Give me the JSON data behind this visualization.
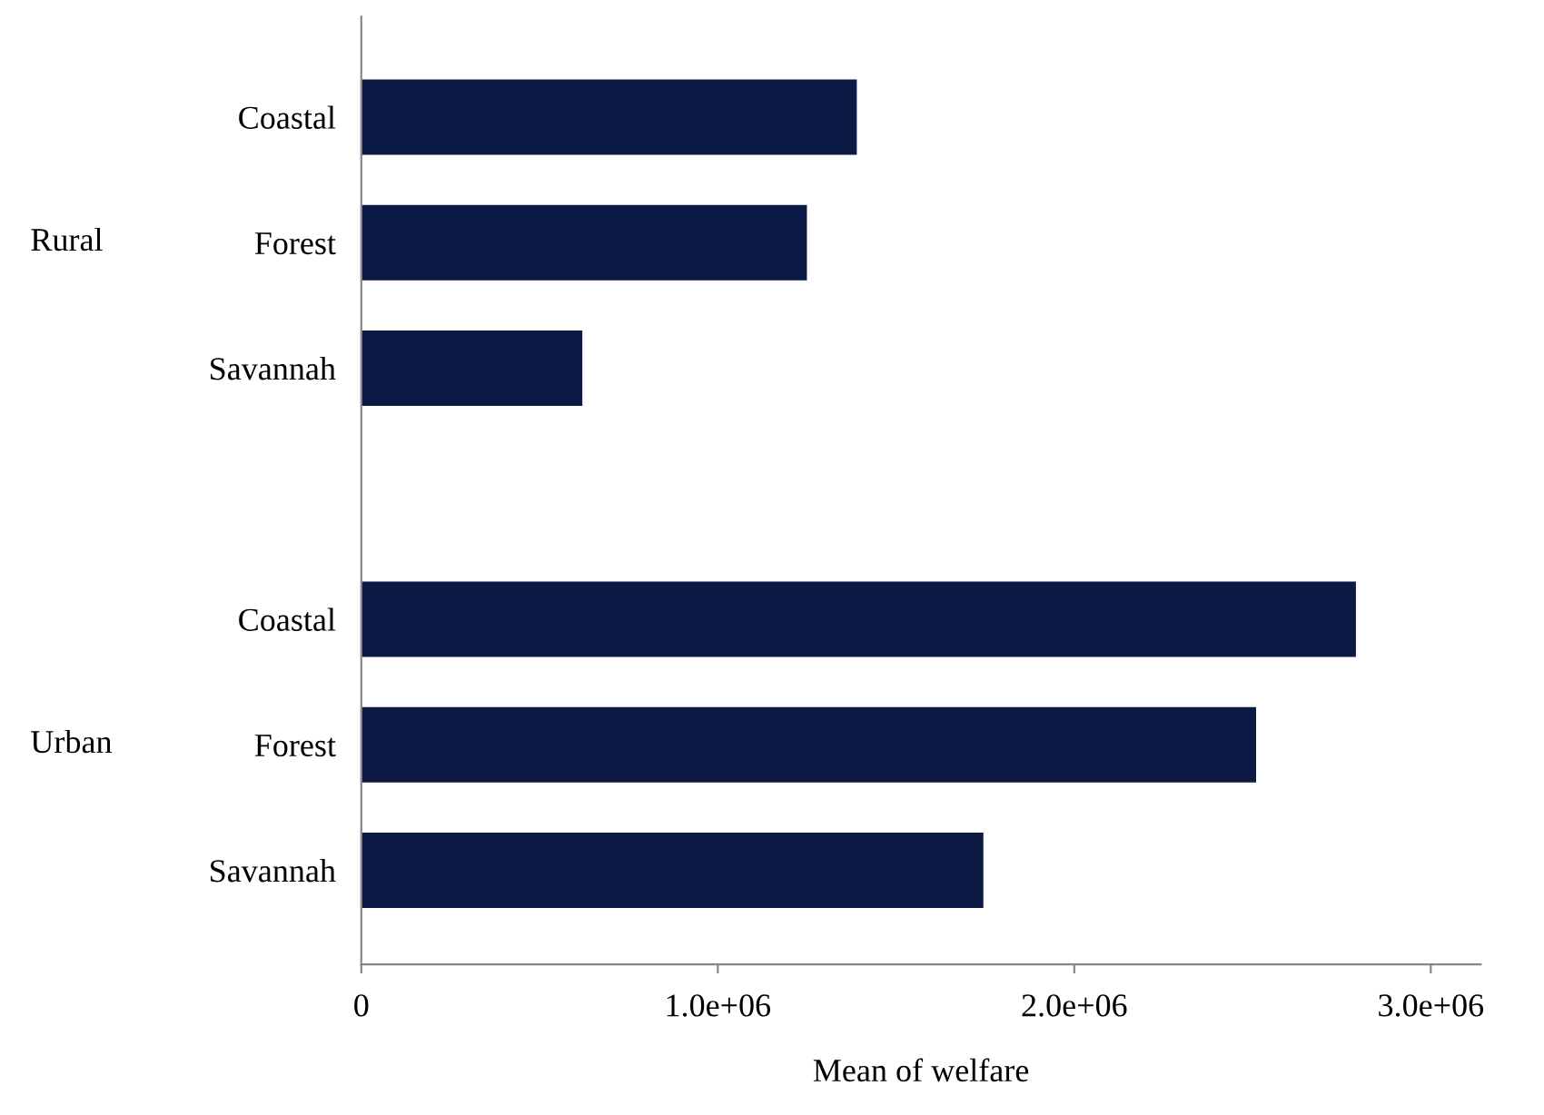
{
  "chart_data": {
    "type": "bar",
    "orientation": "horizontal",
    "xlabel": "Mean of welfare",
    "categories": [
      "Coastal",
      "Forest",
      "Savannah",
      null,
      "Coastal",
      "Forest",
      "Savannah"
    ],
    "values": [
      1390000,
      1250000,
      620000,
      null,
      2790000,
      2510000,
      1745000
    ],
    "color": "#0d1a45",
    "xlim": [
      0,
      3140000
    ],
    "xticks": [
      0,
      {
        "value": 1000000,
        "label": "1.0e+06"
      },
      {
        "value": 2000000,
        "label": "2.0e+06"
      },
      {
        "value": 3000000,
        "label": "3.0e+06"
      }
    ],
    "annotations": [
      "Rural",
      "Urban"
    ],
    "grid": false,
    "legend": false
  }
}
